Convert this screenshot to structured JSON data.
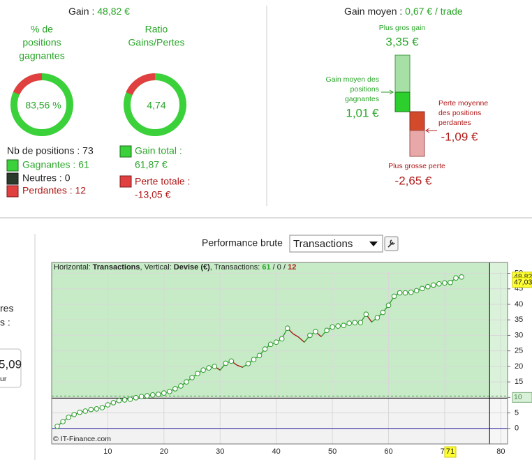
{
  "summary": {
    "gain_label": "Gain : ",
    "gain_value": "48,82 €",
    "pct_title": [
      "% de",
      "positions",
      "gagnantes"
    ],
    "pct_value": "83,56 %",
    "ratio_title": [
      "Ratio",
      "Gains/Pertes"
    ],
    "ratio_value": "4,74",
    "nb_positions": "Nb de positions : 73",
    "gagnantes": "Gagnantes : 61",
    "neutres": "Neutres : 0",
    "perdantes": "Perdantes : 12",
    "gain_total": [
      "Gain total :",
      "61,87 €"
    ],
    "perte_totale": [
      "Perte totale :",
      "-13,05 €"
    ]
  },
  "average": {
    "label": "Gain moyen : ",
    "value": "0,67 € / trade",
    "max_gain_label": "Plus gros gain",
    "max_gain": "3,35 €",
    "avg_gain_label": [
      "Gain moyen des",
      "positions",
      "gagnantes"
    ],
    "avg_gain": "1,01 €",
    "avg_loss_label": [
      "Perte moyenne",
      "des positions",
      "perdantes"
    ],
    "avg_loss": "-1,09 €",
    "max_loss_label": "Plus grosse perte",
    "max_loss": "-2,65 €"
  },
  "side_panel": [
    "res",
    "s :",
    "5,09",
    "ur"
  ],
  "performance": {
    "title": "Performance brute",
    "select": "Transactions"
  },
  "chart_data": {
    "type": "line",
    "header": [
      "Horizontal: ",
      "Transactions",
      ", Vertical: ",
      "Devise (€)",
      ", Transactions: ",
      "61",
      " / ",
      "0",
      " / ",
      "12"
    ],
    "footer": "© IT-Finance.com",
    "x": [
      1,
      2,
      3,
      4,
      5,
      6,
      7,
      8,
      9,
      10,
      11,
      12,
      13,
      14,
      15,
      16,
      17,
      18,
      19,
      20,
      21,
      22,
      23,
      24,
      25,
      26,
      27,
      28,
      29,
      30,
      31,
      32,
      33,
      34,
      35,
      36,
      37,
      38,
      39,
      40,
      41,
      42,
      43,
      44,
      45,
      46,
      47,
      48,
      49,
      50,
      51,
      52,
      53,
      54,
      55,
      56,
      57,
      58,
      59,
      60,
      61,
      62,
      63,
      64,
      65,
      66,
      67,
      68,
      69,
      70,
      71,
      72,
      73
    ],
    "series": [
      {
        "name": "Performance",
        "color": "#2a9a2a",
        "loss_color": "#b01818",
        "values": [
          0.7,
          2.2,
          3.6,
          4.5,
          5.2,
          5.6,
          6.1,
          6.3,
          6.7,
          7.6,
          8.3,
          9,
          9.2,
          9.4,
          9.9,
          10.3,
          10.5,
          10.8,
          11,
          11.4,
          11.9,
          12.8,
          13.7,
          15,
          16.4,
          17.7,
          18.8,
          19.5,
          20,
          18.8,
          21,
          21.7,
          20.4,
          19.7,
          20.9,
          22.2,
          23.5,
          25.6,
          27.1,
          27.8,
          28.9,
          32.3,
          30.5,
          29.4,
          27.8,
          30,
          31.2,
          29.6,
          31.6,
          32.7,
          33,
          33.2,
          33.9,
          34.1,
          34.1,
          36.8,
          34.3,
          35.7,
          37.4,
          39.7,
          42.6,
          43.7,
          43.7,
          43.9,
          44.4,
          45.1,
          45.7,
          46.2,
          46.6,
          46.9,
          47.03,
          48.5,
          48.82
        ]
      }
    ],
    "xlim": [
      0,
      81.2
    ],
    "ylim": [
      -5,
      53.5
    ],
    "xticks": [
      10,
      20,
      30,
      40,
      50,
      60,
      70,
      80
    ],
    "yticks": [
      0,
      5,
      10,
      15,
      20,
      25,
      30,
      35,
      40,
      45,
      50
    ],
    "reference_line": 10,
    "cursor_x": 78,
    "cursor_labels": [
      {
        "value": 48.82,
        "label": "48,82"
      },
      {
        "value": 47.03,
        "label": "47,03"
      },
      {
        "value": 10,
        "label": "10"
      }
    ],
    "x_cursor_label": {
      "value": 71,
      "label": "71"
    }
  }
}
